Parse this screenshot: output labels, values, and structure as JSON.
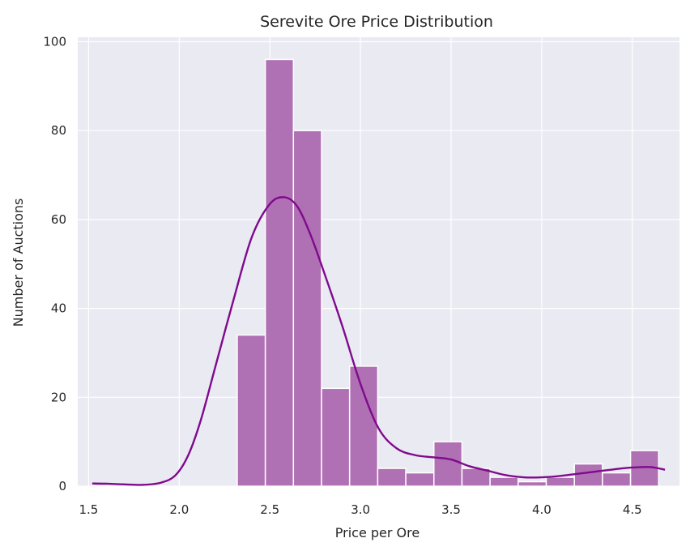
{
  "chart_data": {
    "type": "bar",
    "title": "Serevite Ore Price Distribution",
    "xlabel": "Price per Ore",
    "ylabel": "Number of Auctions",
    "xlim": [
      1.44,
      4.76
    ],
    "ylim": [
      0,
      101
    ],
    "xticks": [
      "1.5",
      "2.0",
      "2.5",
      "3.0",
      "3.5",
      "4.0",
      "4.5"
    ],
    "yticks": [
      "0",
      "20",
      "40",
      "60",
      "80",
      "100"
    ],
    "grid": true,
    "bins": [
      {
        "x0": 2.32,
        "x1": 2.475,
        "count": 34
      },
      {
        "x0": 2.475,
        "x1": 2.63,
        "count": 96
      },
      {
        "x0": 2.63,
        "x1": 2.785,
        "count": 80
      },
      {
        "x0": 2.785,
        "x1": 2.94,
        "count": 22
      },
      {
        "x0": 2.94,
        "x1": 3.095,
        "count": 27
      },
      {
        "x0": 3.095,
        "x1": 3.25,
        "count": 4
      },
      {
        "x0": 3.25,
        "x1": 3.405,
        "count": 3
      },
      {
        "x0": 3.405,
        "x1": 3.56,
        "count": 10
      },
      {
        "x0": 3.56,
        "x1": 3.715,
        "count": 4
      },
      {
        "x0": 3.715,
        "x1": 3.87,
        "count": 2
      },
      {
        "x0": 3.87,
        "x1": 4.025,
        "count": 1
      },
      {
        "x0": 4.025,
        "x1": 4.18,
        "count": 2
      },
      {
        "x0": 4.18,
        "x1": 4.335,
        "count": 5
      },
      {
        "x0": 4.335,
        "x1": 4.49,
        "count": 3
      },
      {
        "x0": 4.49,
        "x1": 4.645,
        "count": 8
      }
    ],
    "kde": [
      [
        1.52,
        0.6
      ],
      [
        1.6,
        0.55
      ],
      [
        1.7,
        0.4
      ],
      [
        1.8,
        0.3
      ],
      [
        1.9,
        0.8
      ],
      [
        1.98,
        2.5
      ],
      [
        2.05,
        7
      ],
      [
        2.12,
        15
      ],
      [
        2.2,
        27
      ],
      [
        2.3,
        42
      ],
      [
        2.4,
        56
      ],
      [
        2.5,
        63.5
      ],
      [
        2.58,
        65
      ],
      [
        2.65,
        63
      ],
      [
        2.72,
        57
      ],
      [
        2.8,
        48
      ],
      [
        2.9,
        36
      ],
      [
        3.0,
        23
      ],
      [
        3.1,
        13
      ],
      [
        3.2,
        8.5
      ],
      [
        3.3,
        7
      ],
      [
        3.4,
        6.5
      ],
      [
        3.5,
        6
      ],
      [
        3.6,
        4.5
      ],
      [
        3.7,
        3.5
      ],
      [
        3.8,
        2.5
      ],
      [
        3.9,
        2
      ],
      [
        4.0,
        2
      ],
      [
        4.1,
        2.3
      ],
      [
        4.2,
        2.8
      ],
      [
        4.3,
        3.3
      ],
      [
        4.4,
        3.8
      ],
      [
        4.5,
        4.2
      ],
      [
        4.6,
        4.3
      ],
      [
        4.68,
        3.7
      ]
    ],
    "colors": {
      "bar": "#b070b4",
      "bar_edge": "#ffffff",
      "kde": "#7f0a8c",
      "plot_bg": "#eaeaf2",
      "grid": "#ffffff"
    }
  }
}
